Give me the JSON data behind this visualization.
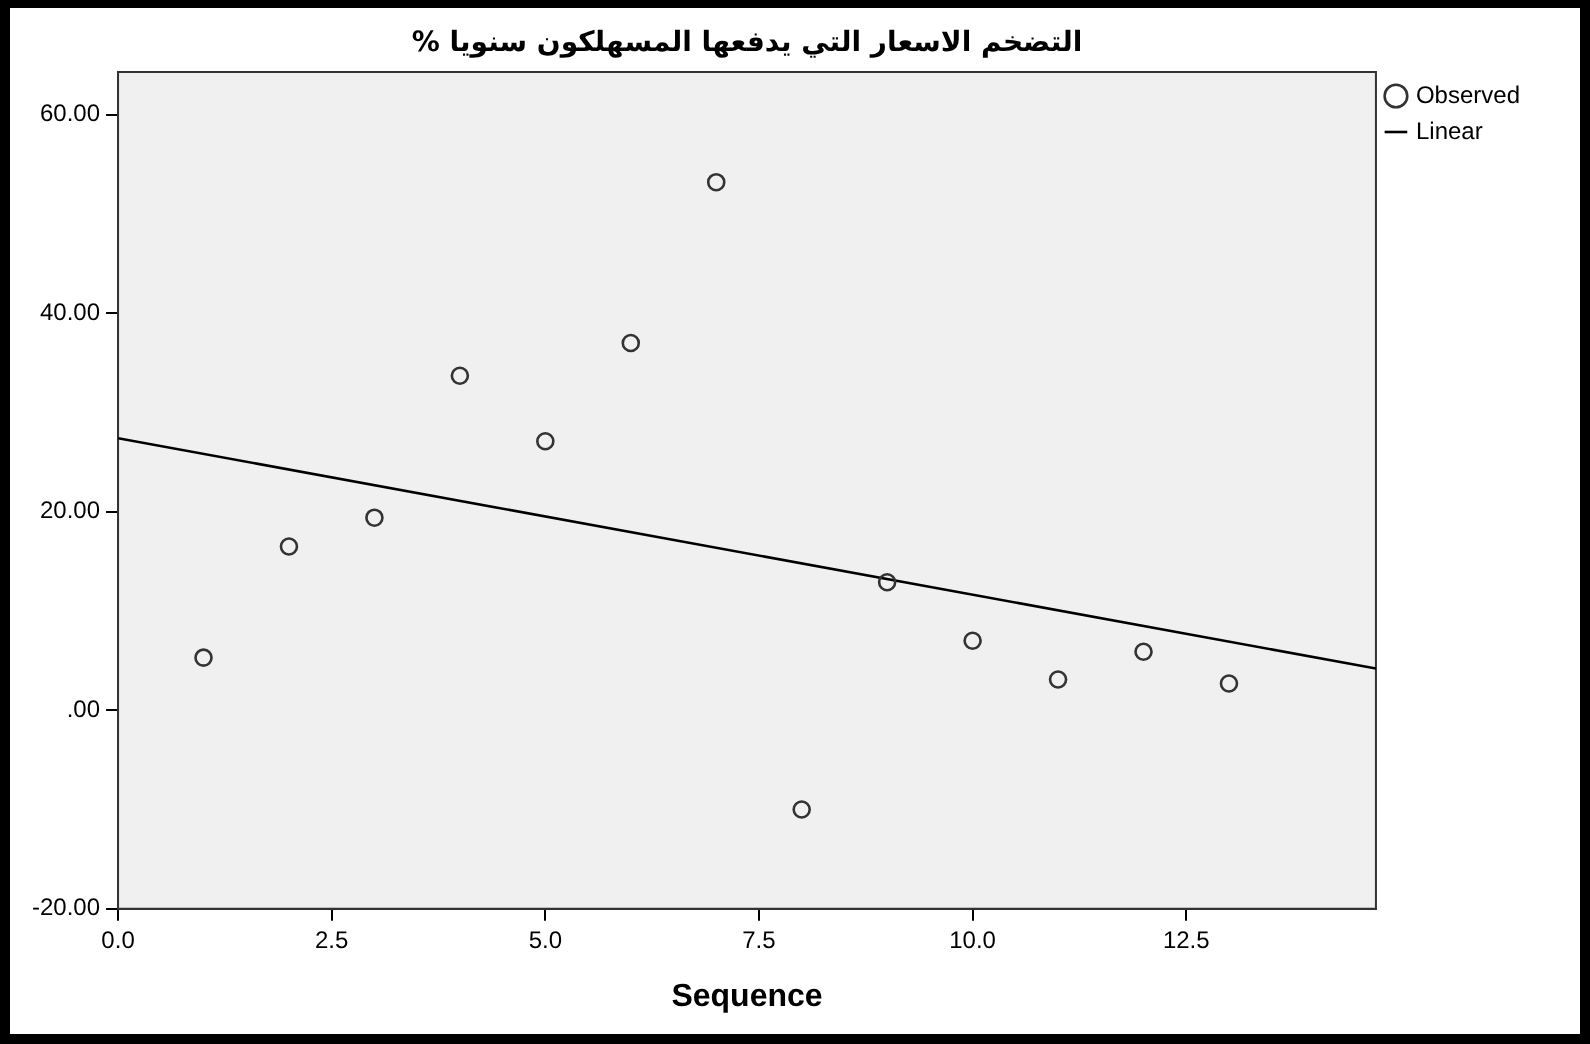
{
  "chart_data": {
    "type": "scatter",
    "title": "التضخم الاسعار التي يدفعها المسهلكون سنويا %",
    "xlabel": "Sequence",
    "xlim": [
      0,
      14.72
    ],
    "xticks": [
      {
        "value": 0,
        "label": "0.0"
      },
      {
        "value": 2.5,
        "label": "2.5"
      },
      {
        "value": 5,
        "label": "5.0"
      },
      {
        "value": 7.5,
        "label": "7.5"
      },
      {
        "value": 10,
        "label": "10.0"
      },
      {
        "value": 12.5,
        "label": "12.5"
      }
    ],
    "ylim": [
      -20,
      64.3
    ],
    "yticks": [
      {
        "value": -20,
        "label": "-20.00"
      },
      {
        "value": 0,
        "label": ".00"
      },
      {
        "value": 20,
        "label": "20.00"
      },
      {
        "value": 40,
        "label": "40.00"
      },
      {
        "value": 60,
        "label": "60.00"
      }
    ],
    "grid": false,
    "legend": "top right",
    "series": [
      {
        "name": "Observed",
        "marker": "circle",
        "color": "#333333",
        "x": [
          1,
          2,
          3,
          4,
          5,
          6,
          7,
          8,
          9,
          10,
          11,
          12,
          13
        ],
        "values": [
          5.3,
          16.5,
          19.4,
          33.7,
          27.1,
          37.0,
          53.2,
          -10,
          12.9,
          7.0,
          3.1,
          5.9,
          2.7
        ]
      },
      {
        "name": "Linear",
        "type": "line",
        "marker": "none",
        "color": "#000000",
        "x": [
          0,
          14.72
        ],
        "values": [
          27.4,
          4.2
        ]
      }
    ]
  }
}
